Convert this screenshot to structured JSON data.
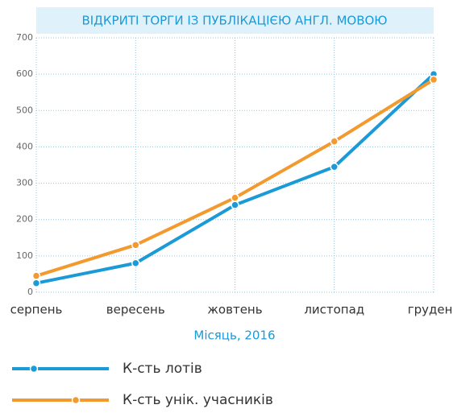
{
  "chart_data": {
    "type": "line",
    "title": "ВІДКРИТІ ТОРГИ ІЗ ПУБЛІКАЦІЄЮ АНГЛ. МОВОЮ",
    "x_label": "Місяць, 2016",
    "categories": [
      "серпень",
      "вересень",
      "жовтень",
      "листопад",
      "грудень"
    ],
    "series": [
      {
        "name": "К-сть лотів",
        "color": "#1a9ad6",
        "values": [
          25,
          80,
          240,
          345,
          600
        ]
      },
      {
        "name": "К-сть унік. учасників",
        "color": "#f39a2e",
        "values": [
          45,
          130,
          260,
          415,
          585
        ]
      }
    ],
    "ylim": [
      0,
      700
    ],
    "yticks": [
      0,
      100,
      200,
      300,
      400,
      500,
      600,
      700
    ],
    "grid": true
  }
}
